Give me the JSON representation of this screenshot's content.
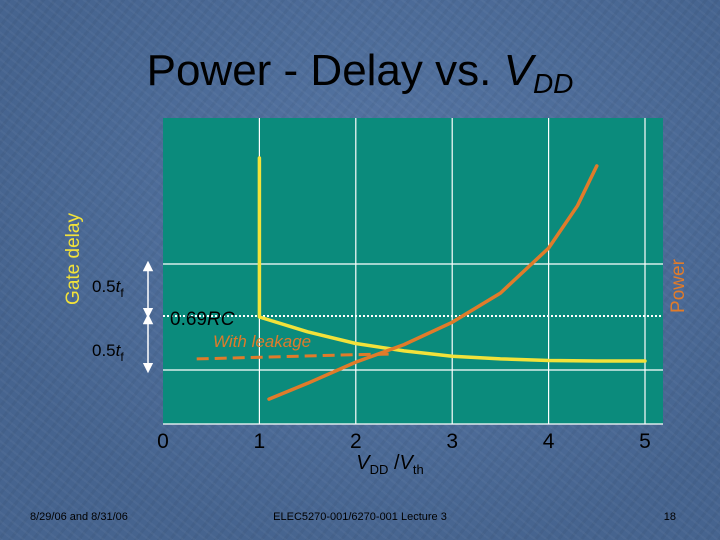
{
  "slide": {
    "title_main": "Power - Delay vs. ",
    "title_var": "V",
    "title_sub": "DD",
    "footer_left": "8/29/06 and 8/31/06",
    "footer_center": "ELEC5270-001/6270-001 Lecture 3",
    "page_number": "18"
  },
  "colors": {
    "plot_fill": "#0b8b7c",
    "delay_curve": "#f2e23a",
    "power_curve": "#e07b2a",
    "dotted_line": "#ffffff",
    "grid": "#ffffff"
  },
  "chart_data": {
    "type": "line",
    "title": "Power - Delay vs. VDD",
    "xlabel": {
      "var": "V",
      "sub": "DD",
      "sep": " /",
      "var2": "V",
      "sub2": "th"
    },
    "ylabel_left": "Gate delay",
    "ylabel_right": "Power",
    "x_ticks": [
      "0",
      "1",
      "2",
      "3",
      "4",
      "5"
    ],
    "xlim": [
      0,
      5
    ],
    "grid": true,
    "levels": {
      "upper_label": {
        "coef": "0.5",
        "var": "t",
        "sub": "f"
      },
      "lower_label": {
        "coef": "0.5",
        "var": "t",
        "sub": "f"
      },
      "rc_label": {
        "coef": "0.69",
        "var": "RC"
      }
    },
    "annotations": {
      "with_leakage": "With leakage"
    },
    "series": [
      {
        "key": "gate_delay",
        "style": "solid",
        "color": "#f2e23a",
        "x": [
          1,
          1,
          1.5,
          2,
          2.5,
          3,
          3.5,
          4,
          4.5,
          5
        ],
        "y": [
          4.0,
          1.0,
          0.72,
          0.5,
          0.36,
          0.26,
          0.21,
          0.18,
          0.17,
          0.17
        ]
      },
      {
        "key": "power",
        "style": "solid",
        "color": "#e07b2a",
        "x": [
          1.1,
          1.5,
          2.0,
          2.5,
          3.0,
          3.5,
          4.0,
          4.3,
          4.5
        ],
        "y": [
          -0.55,
          -0.25,
          0.15,
          0.48,
          0.9,
          1.45,
          2.3,
          3.1,
          3.85
        ]
      },
      {
        "key": "power_with_leakage",
        "label": "With leakage",
        "style": "dashed",
        "color": "#e07b2a",
        "x": [
          0.35,
          1.0,
          1.6,
          2.0,
          2.4
        ],
        "y": [
          0.21,
          0.24,
          0.27,
          0.29,
          0.3
        ]
      }
    ]
  }
}
